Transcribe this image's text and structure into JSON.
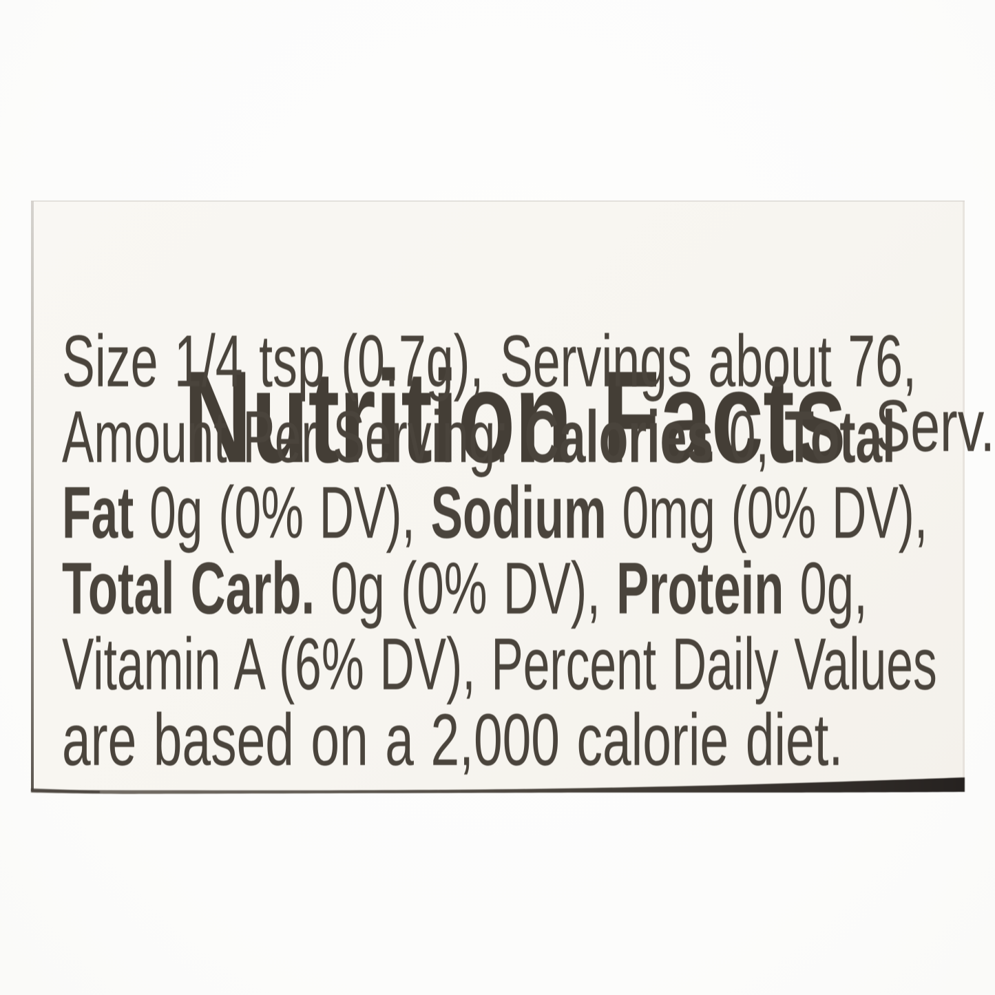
{
  "label": {
    "headline": "Nutrition Facts",
    "headline_suffix": "Serv.",
    "lines": [
      {
        "segments": [
          {
            "text": "Size 1/4 tsp (0.7g), Servings about 76,",
            "bold": false
          }
        ]
      },
      {
        "segments": [
          {
            "text": "Amount Per Serving: ",
            "bold": false
          },
          {
            "text": "Calories",
            "bold": true
          },
          {
            "text": " 0, ",
            "bold": false
          },
          {
            "text": "Total",
            "bold": true
          }
        ]
      },
      {
        "segments": [
          {
            "text": "Fat",
            "bold": true
          },
          {
            "text": " 0g (0% DV), ",
            "bold": false
          },
          {
            "text": "Sodium",
            "bold": true
          },
          {
            "text": " 0mg (0% DV),",
            "bold": false
          }
        ]
      },
      {
        "segments": [
          {
            "text": "Total Carb.",
            "bold": true
          },
          {
            "text": " 0g (0% DV), ",
            "bold": false
          },
          {
            "text": "Protein",
            "bold": true
          },
          {
            "text": " 0g,",
            "bold": false
          }
        ]
      },
      {
        "segments": [
          {
            "text": "Vitamin A (6% DV), Percent Daily Values",
            "bold": false
          }
        ]
      },
      {
        "segments": [
          {
            "text": "are based on a 2,000 calorie diet.",
            "bold": false
          }
        ]
      }
    ],
    "colors": {
      "text": "#4a443c",
      "headline_text": "#443e36",
      "label_background": "#f7f5f0",
      "page_background": "#fdfdfc",
      "edge_shadow_dark": "#262220",
      "edge_shadow_mid": "#4a443d",
      "edge_shadow_light": "#7a746c"
    }
  }
}
